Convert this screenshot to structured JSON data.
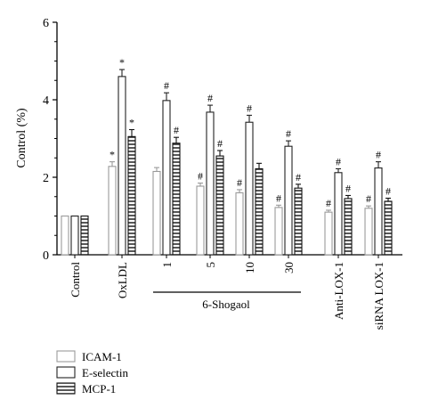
{
  "chart_data": {
    "type": "bar",
    "ylabel": "Control (%)",
    "ylim": [
      0,
      6
    ],
    "yticks": [
      "0",
      "2",
      "4",
      "6"
    ],
    "categories": [
      "Control",
      "OxLDL",
      "1",
      "5",
      "10",
      "30",
      "Anti-LOX-1",
      "siRNA LOX-1"
    ],
    "group_label": "6-Shogaol",
    "series": [
      {
        "name": "ICAM-1",
        "values": [
          1.0,
          2.28,
          2.15,
          1.77,
          1.6,
          1.22,
          1.1,
          1.2
        ],
        "errors": [
          0.0,
          0.12,
          0.1,
          0.08,
          0.08,
          0.06,
          0.05,
          0.06
        ],
        "markers": [
          "",
          "*",
          "",
          "#",
          "#",
          "#",
          "#",
          "#"
        ]
      },
      {
        "name": "E-selectin",
        "values": [
          1.0,
          4.6,
          3.98,
          3.68,
          3.42,
          2.8,
          2.12,
          2.24
        ],
        "errors": [
          0.0,
          0.18,
          0.2,
          0.18,
          0.18,
          0.14,
          0.1,
          0.16
        ],
        "markers": [
          "",
          "*",
          "#",
          "#",
          "#",
          "#",
          "#",
          "#"
        ]
      },
      {
        "name": "MCP-1",
        "values": [
          1.0,
          3.05,
          2.88,
          2.55,
          2.22,
          1.72,
          1.45,
          1.38
        ],
        "errors": [
          0.0,
          0.18,
          0.15,
          0.14,
          0.14,
          0.1,
          0.08,
          0.08
        ],
        "markers": [
          "",
          "*",
          "#",
          "#",
          "",
          "#",
          "#",
          "#"
        ]
      }
    ]
  },
  "colors": {
    "icam_fill": "#ffffff",
    "icam_stroke": "#9a9a9a",
    "eselectin_fill": "#ffffff",
    "eselectin_stroke": "#222222",
    "mcp_fill": "#ffffff",
    "mcp_stroke": "#111111",
    "axis": "#000000"
  }
}
